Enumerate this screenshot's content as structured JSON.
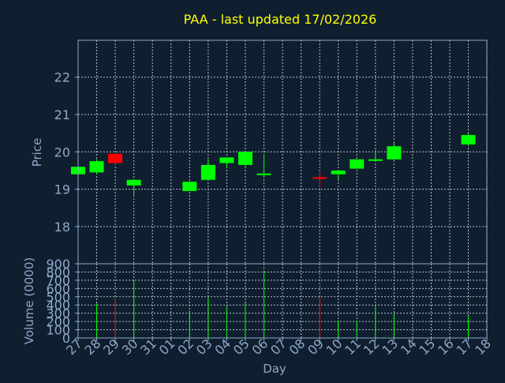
{
  "chart_data": {
    "type": "candlestick",
    "title": "PAA - last updated 17/02/2026",
    "ylabel": "Price",
    "xlabel": "Day",
    "volume_label": "Volume (0000)",
    "colors": {
      "background": "#0f1f30",
      "up": "#00ff00",
      "down": "#ff0000",
      "title": "#ffff00",
      "axis": "#8fa8c8"
    },
    "ylim": [
      17.1,
      21.0
    ],
    "yticks": [
      18,
      19,
      20,
      21,
      22
    ],
    "volume_ylim": [
      0,
      900
    ],
    "volume_ticks": [
      0,
      100,
      200,
      300,
      400,
      500,
      600,
      700,
      800,
      900
    ],
    "categories": [
      "27",
      "28",
      "29",
      "30",
      "31",
      "01",
      "02",
      "03",
      "04",
      "05",
      "06",
      "07",
      "08",
      "09",
      "10",
      "11",
      "12",
      "13",
      "14",
      "15",
      "16",
      "17",
      "18"
    ],
    "candles": [
      {
        "x": "27",
        "open": 19.4,
        "high": 19.6,
        "low": 19.35,
        "close": 19.6,
        "volume": 0
      },
      {
        "x": "28",
        "open": 19.45,
        "high": 19.8,
        "low": 19.4,
        "close": 19.75,
        "volume": 420
      },
      {
        "x": "29",
        "open": 19.95,
        "high": 19.95,
        "low": 19.65,
        "close": 19.7,
        "volume": 480
      },
      {
        "x": "30",
        "open": 19.1,
        "high": 19.25,
        "low": 18.85,
        "close": 19.25,
        "volume": 700
      },
      {
        "x": "02",
        "open": 18.95,
        "high": 19.2,
        "low": 18.95,
        "close": 19.2,
        "volume": 330
      },
      {
        "x": "03",
        "open": 19.25,
        "high": 19.8,
        "low": 19.25,
        "close": 19.65,
        "volume": 490
      },
      {
        "x": "04",
        "open": 19.7,
        "high": 19.85,
        "low": 19.55,
        "close": 19.85,
        "volume": 380
      },
      {
        "x": "05",
        "open": 19.65,
        "high": 20.0,
        "low": 19.55,
        "close": 20.0,
        "volume": 430
      },
      {
        "x": "06",
        "open": 19.4,
        "high": 19.95,
        "low": 19.3,
        "close": 19.42,
        "volume": 820
      },
      {
        "x": "09",
        "open": 19.32,
        "high": 19.45,
        "low": 19.05,
        "close": 19.28,
        "volume": 490
      },
      {
        "x": "10",
        "open": 19.4,
        "high": 19.5,
        "low": 19.25,
        "close": 19.5,
        "volume": 210
      },
      {
        "x": "11",
        "open": 19.55,
        "high": 19.8,
        "low": 19.55,
        "close": 19.8,
        "volume": 210
      },
      {
        "x": "12",
        "open": 19.78,
        "high": 20.05,
        "low": 19.75,
        "close": 19.8,
        "volume": 380
      },
      {
        "x": "13",
        "open": 19.8,
        "high": 20.25,
        "low": 19.75,
        "close": 20.15,
        "volume": 290
      },
      {
        "x": "17",
        "open": 20.2,
        "high": 20.5,
        "low": 20.15,
        "close": 20.45,
        "volume": 270
      }
    ]
  }
}
